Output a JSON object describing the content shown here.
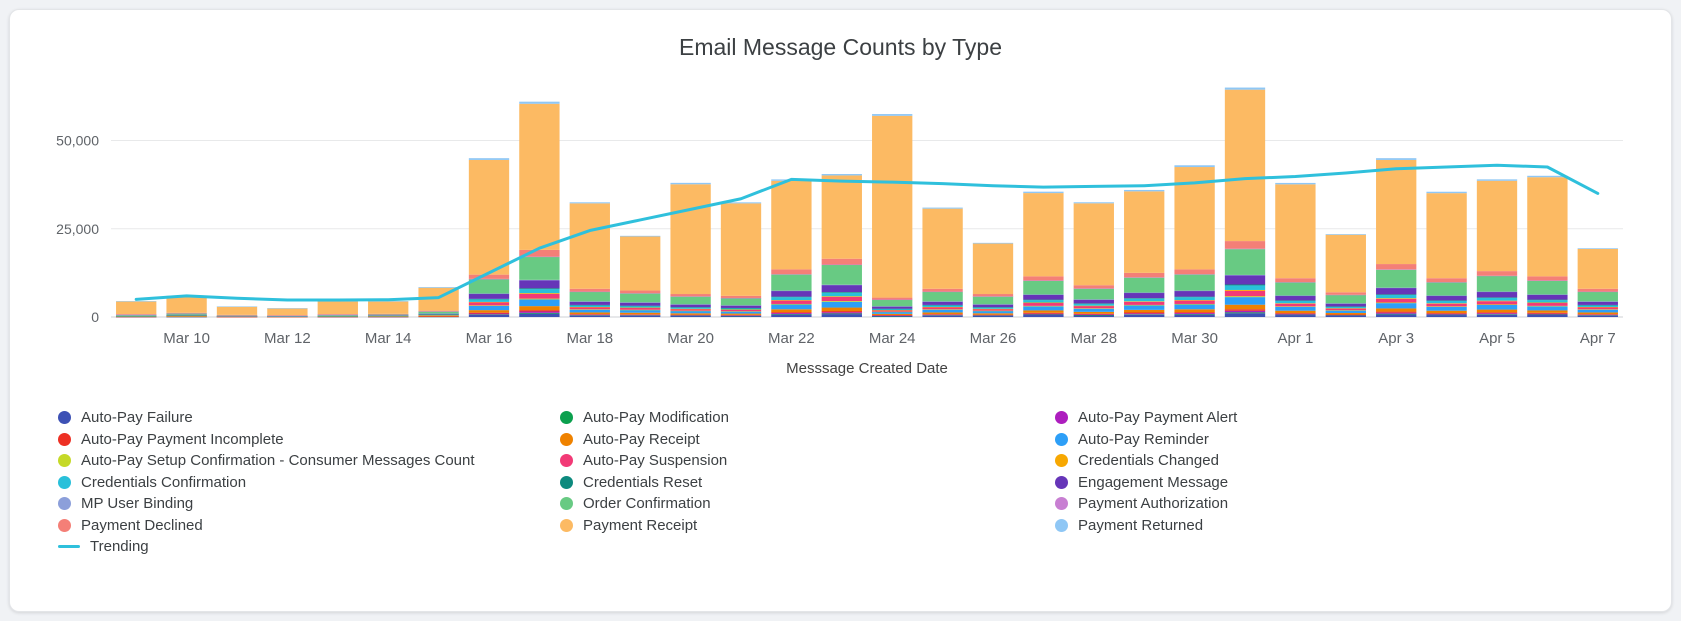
{
  "page": {
    "background": "#f0f2f5",
    "card_background": "#ffffff"
  },
  "chart_data": {
    "type": "bar",
    "stacked": true,
    "title": "Email Message Counts by Type",
    "xlabel": "Messsage Created Date",
    "ylabel": "",
    "ylim": [
      0,
      68000
    ],
    "yticks": [
      0,
      25000,
      50000
    ],
    "ytick_labels": [
      "0",
      "25,000",
      "50,000"
    ],
    "xtick_start_index": 1,
    "xtick_step": 2,
    "grid": true,
    "legend_position": "bottom",
    "categories": [
      "Mar 9",
      "Mar 10",
      "Mar 11",
      "Mar 12",
      "Mar 13",
      "Mar 14",
      "Mar 15",
      "Mar 16",
      "Mar 17",
      "Mar 18",
      "Mar 19",
      "Mar 20",
      "Mar 21",
      "Mar 22",
      "Mar 23",
      "Mar 24",
      "Mar 25",
      "Mar 26",
      "Mar 27",
      "Mar 28",
      "Mar 29",
      "Mar 30",
      "Mar 31",
      "Apr 1",
      "Apr 2",
      "Apr 3",
      "Apr 4",
      "Apr 5",
      "Apr 6",
      "Apr 7"
    ],
    "series": [
      {
        "name": "Auto-Pay Failure",
        "color": "#3d51b5",
        "values": [
          40,
          60,
          30,
          25,
          40,
          45,
          90,
          600,
          950,
          400,
          375,
          325,
          300,
          675,
          825,
          275,
          400,
          325,
          575,
          450,
          625,
          675,
          1075,
          550,
          350,
          750,
          550,
          650,
          575,
          400
        ]
      },
      {
        "name": "Auto-Pay Modification",
        "color": "#0ba04e",
        "values": [
          10,
          15,
          7,
          6,
          10,
          11,
          20,
          145,
          230,
          95,
          90,
          80,
          70,
          160,
          200,
          65,
          95,
          80,
          140,
          110,
          150,
          160,
          260,
          130,
          85,
          180,
          130,
          155,
          140,
          95
        ]
      },
      {
        "name": "Auto-Pay Payment Alert",
        "color": "#ad1ebe",
        "values": [
          16,
          24,
          12,
          10,
          16,
          18,
          36,
          240,
          380,
          160,
          150,
          130,
          120,
          270,
          330,
          110,
          160,
          130,
          230,
          180,
          250,
          270,
          430,
          220,
          140,
          300,
          220,
          260,
          230,
          160
        ]
      },
      {
        "name": "Auto-Pay Payment Incomplete",
        "color": "#ed3024",
        "values": [
          16,
          24,
          12,
          10,
          16,
          18,
          36,
          240,
          380,
          160,
          150,
          130,
          120,
          270,
          330,
          110,
          160,
          130,
          230,
          180,
          250,
          270,
          430,
          220,
          140,
          300,
          220,
          260,
          230,
          160
        ]
      },
      {
        "name": "Auto-Pay Receipt",
        "color": "#ef8200",
        "values": [
          48,
          72,
          36,
          30,
          48,
          54,
          108,
          720,
          1140,
          480,
          450,
          390,
          360,
          810,
          990,
          330,
          480,
          390,
          690,
          540,
          750,
          810,
          1290,
          660,
          420,
          900,
          660,
          780,
          690,
          480
        ]
      },
      {
        "name": "Auto-Pay Reminder",
        "color": "#2d9ff7",
        "values": [
          80,
          120,
          60,
          50,
          80,
          90,
          180,
          1200,
          1900,
          800,
          750,
          650,
          600,
          1350,
          1650,
          550,
          800,
          650,
          1150,
          900,
          1250,
          1350,
          2150,
          1100,
          700,
          1500,
          1100,
          1300,
          1150,
          800
        ]
      },
      {
        "name": "Auto-Pay Setup Confirmation - Consumer Messages Count",
        "color": "#c5d928",
        "values": [
          10,
          15,
          7,
          6,
          10,
          11,
          20,
          145,
          230,
          95,
          90,
          80,
          70,
          160,
          200,
          65,
          95,
          80,
          140,
          110,
          150,
          160,
          260,
          130,
          85,
          180,
          130,
          155,
          140,
          95
        ]
      },
      {
        "name": "Auto-Pay Suspension",
        "color": "#f23a76",
        "values": [
          56,
          84,
          42,
          35,
          56,
          63,
          126,
          840,
          1330,
          560,
          525,
          455,
          420,
          945,
          1155,
          385,
          560,
          455,
          805,
          630,
          875,
          945,
          1505,
          770,
          490,
          1050,
          770,
          910,
          805,
          560
        ]
      },
      {
        "name": "Credentials Changed",
        "color": "#f7a802",
        "values": [
          10,
          15,
          7,
          6,
          10,
          11,
          20,
          145,
          230,
          95,
          90,
          80,
          70,
          160,
          200,
          65,
          95,
          80,
          140,
          110,
          150,
          160,
          260,
          130,
          85,
          180,
          130,
          155,
          140,
          95
        ]
      },
      {
        "name": "Credentials Confirmation",
        "color": "#29c0da",
        "values": [
          48,
          72,
          36,
          30,
          48,
          54,
          108,
          720,
          1140,
          480,
          450,
          390,
          360,
          810,
          990,
          330,
          480,
          390,
          690,
          540,
          750,
          810,
          1290,
          660,
          420,
          900,
          660,
          780,
          690,
          480
        ]
      },
      {
        "name": "Credentials Reset",
        "color": "#0d8a7e",
        "values": [
          10,
          15,
          7,
          6,
          10,
          11,
          20,
          145,
          230,
          95,
          90,
          80,
          70,
          160,
          200,
          65,
          95,
          80,
          140,
          110,
          150,
          160,
          260,
          130,
          85,
          180,
          130,
          155,
          140,
          95
        ]
      },
      {
        "name": "Engagement Message",
        "color": "#6635b8",
        "values": [
          96,
          144,
          72,
          60,
          96,
          108,
          216,
          1440,
          2280,
          960,
          900,
          780,
          720,
          1620,
          1980,
          660,
          960,
          780,
          1380,
          1080,
          1500,
          1620,
          2580,
          1320,
          840,
          1800,
          1320,
          1560,
          1380,
          960
        ]
      },
      {
        "name": "MP User Binding",
        "color": "#8c9fda",
        "values": [
          5,
          7,
          4,
          3,
          5,
          5,
          10,
          70,
          115,
          50,
          45,
          40,
          35,
          80,
          100,
          35,
          50,
          40,
          70,
          55,
          75,
          80,
          130,
          65,
          40,
          90,
          65,
          80,
          70,
          50
        ]
      },
      {
        "name": "Order Confirmation",
        "color": "#68ca83",
        "values": [
          272,
          408,
          204,
          170,
          272,
          306,
          612,
          4080,
          6460,
          2720,
          2550,
          2210,
          2040,
          4590,
          5610,
          1870,
          2720,
          2210,
          3910,
          3060,
          4250,
          4590,
          7310,
          3740,
          2380,
          5100,
          3740,
          4420,
          3910,
          2720
        ]
      },
      {
        "name": "Payment Authorization",
        "color": "#c87fd2",
        "values": [
          5,
          7,
          4,
          3,
          5,
          5,
          10,
          70,
          115,
          50,
          45,
          40,
          35,
          80,
          100,
          35,
          50,
          40,
          70,
          55,
          75,
          80,
          130,
          65,
          40,
          90,
          65,
          80,
          70,
          50
        ]
      },
      {
        "name": "Payment Declined",
        "color": "#f47f77",
        "values": [
          80,
          120,
          60,
          50,
          80,
          90,
          180,
          1200,
          1900,
          800,
          750,
          650,
          600,
          1350,
          1650,
          550,
          800,
          650,
          1150,
          900,
          1250,
          1350,
          2150,
          1100,
          700,
          1500,
          1100,
          1300,
          1150,
          800
        ]
      },
      {
        "name": "Payment Receipt",
        "color": "#fcba63",
        "values": [
          3600,
          4650,
          2350,
          1950,
          3600,
          3500,
          6500,
          32500,
          41400,
          24200,
          15300,
          31100,
          26200,
          25100,
          23600,
          51500,
          22700,
          14300,
          23600,
          23200,
          23100,
          29000,
          42900,
          26600,
          16300,
          29500,
          24100,
          25600,
          28100,
          11300
        ]
      },
      {
        "name": "Payment Returned",
        "color": "#8fc7f5",
        "values": [
          100,
          150,
          50,
          50,
          100,
          100,
          200,
          500,
          600,
          300,
          200,
          400,
          300,
          400,
          400,
          500,
          300,
          200,
          400,
          300,
          400,
          500,
          600,
          400,
          200,
          500,
          400,
          400,
          400,
          200
        ]
      }
    ],
    "trend": {
      "name": "Trending",
      "color": "#2fc0dc",
      "values": [
        5000,
        6000,
        5300,
        4800,
        4800,
        4900,
        5500,
        12500,
        19500,
        24500,
        27500,
        30500,
        33500,
        39000,
        38500,
        38200,
        37800,
        37200,
        36800,
        37000,
        37200,
        38000,
        39200,
        39800,
        40800,
        42000,
        42500,
        43000,
        42500,
        35000
      ]
    }
  }
}
